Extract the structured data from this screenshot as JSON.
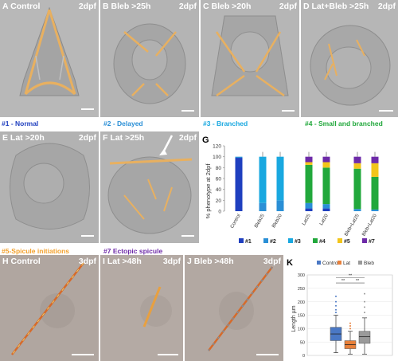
{
  "panels": [
    {
      "id": "A",
      "label": "A Control",
      "stage": "2dpf"
    },
    {
      "id": "B",
      "label": "B Bleb >25h",
      "stage": "2dpf"
    },
    {
      "id": "C",
      "label": "C Bleb >20h",
      "stage": "2dpf"
    },
    {
      "id": "D",
      "label": "D Lat+Bleb >25h",
      "stage": "2dpf"
    },
    {
      "id": "E",
      "label": "E Lat >20h",
      "stage": "2dpf"
    },
    {
      "id": "F",
      "label": "F Lat >25h",
      "stage": "2dpf"
    },
    {
      "id": "H",
      "label": "H Control",
      "stage": "3dpf"
    },
    {
      "id": "I",
      "label": "I Lat >48h",
      "stage": "3dpf"
    },
    {
      "id": "J",
      "label": "J Bleb >48h",
      "stage": "3dpf"
    }
  ],
  "captions": {
    "c1": "#1 - Normal",
    "c2": "#2 - Delayed",
    "c3": "#3 - Branched",
    "c4": "#4 - Small and branched",
    "c5": "#5-Spicule initiations",
    "c7": "#7 Ectopic spicule"
  },
  "colors": {
    "c1": "#1f3fbf",
    "c2": "#2a8fd6",
    "c3": "#19a8e0",
    "c4": "#22a83c",
    "c5": "#f2a02b",
    "c7": "#6d2aa8"
  },
  "chart_data": [
    {
      "panel": "G",
      "type": "bar",
      "stacked": true,
      "ylabel": "% phenotype at 2dpf",
      "ylim": [
        0,
        120
      ],
      "yticks": [
        "0",
        "20",
        "40",
        "60",
        "80",
        "100",
        "120"
      ],
      "categories": [
        "Control",
        "Bleb25",
        "Bleb20",
        "Lat25",
        "Lat20",
        "Bleb+Lat25",
        "Bleb+Lat20"
      ],
      "series": [
        {
          "name": "#1",
          "color": "#1f3fbf",
          "values": [
            98,
            0,
            0,
            5,
            5,
            0,
            0
          ]
        },
        {
          "name": "#2",
          "color": "#2a8fd6",
          "values": [
            2,
            15,
            20,
            10,
            8,
            4,
            3
          ]
        },
        {
          "name": "#3",
          "color": "#19a8e0",
          "values": [
            0,
            85,
            80,
            0,
            0,
            0,
            0
          ]
        },
        {
          "name": "#4",
          "color": "#22a83c",
          "values": [
            0,
            0,
            0,
            70,
            67,
            74,
            60
          ]
        },
        {
          "name": "#5",
          "color": "#f2c51b",
          "values": [
            0,
            0,
            0,
            5,
            10,
            10,
            25
          ]
        },
        {
          "name": "#7",
          "color": "#6d2aa8",
          "values": [
            0,
            0,
            0,
            10,
            10,
            12,
            12
          ]
        }
      ]
    },
    {
      "panel": "K",
      "type": "box",
      "ylabel": "Length µm",
      "ylim": [
        0,
        300
      ],
      "yticks": [
        "0",
        "50",
        "100",
        "150",
        "200",
        "250",
        "300"
      ],
      "legend": [
        "Control",
        "Lat",
        "Bleb"
      ],
      "series": [
        {
          "name": "Control",
          "color": "#4a78c4",
          "min": 10,
          "q1": 55,
          "median": 80,
          "q3": 105,
          "max": 150,
          "outliers": [
            160,
            170,
            185,
            200,
            220
          ]
        },
        {
          "name": "Lat",
          "color": "#e8803a",
          "min": 5,
          "q1": 25,
          "median": 40,
          "q3": 55,
          "max": 90,
          "outliers": [
            100,
            110,
            120
          ]
        },
        {
          "name": "Bleb",
          "color": "#9a9a9a",
          "min": 5,
          "q1": 45,
          "median": 70,
          "q3": 90,
          "max": 140,
          "outliers": [
            160,
            180,
            200,
            230
          ]
        }
      ],
      "significance": [
        "**",
        "**",
        "**"
      ]
    }
  ]
}
